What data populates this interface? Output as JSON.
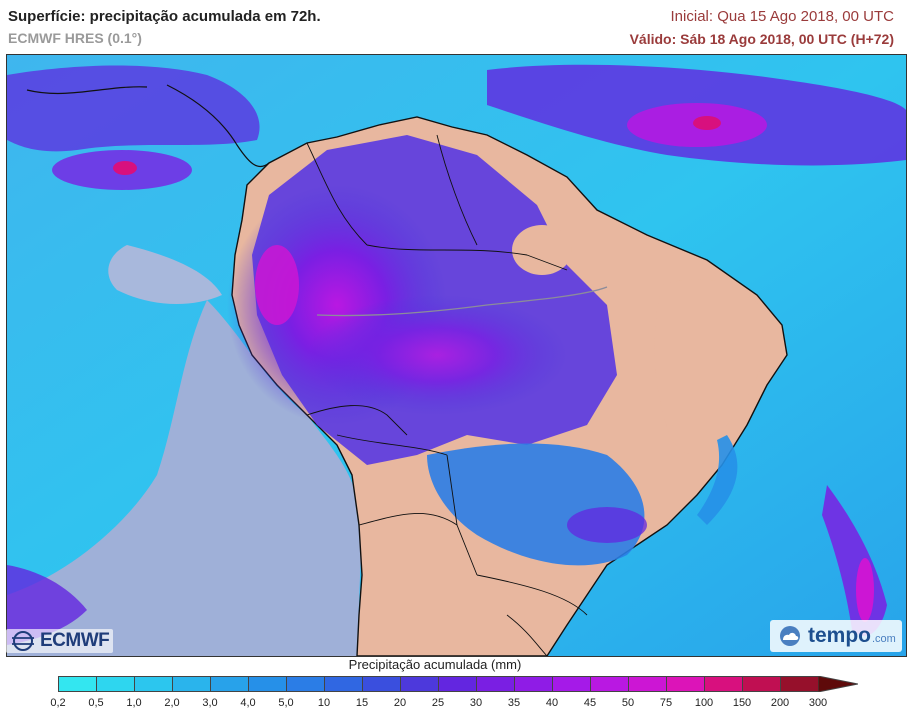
{
  "header": {
    "title": "Superfície: precipitação acumulada em 72h.",
    "model": "ECMWF HRES (0.1°)",
    "initial": "Inicial: Qua 15 Ago 2018, 00 UTC",
    "valid": "Válido: Sáb 18 Ago 2018, 00 UTC (H+72)"
  },
  "logos": {
    "ecmwf": "ECMWF",
    "tempo_main": "tempo",
    "tempo_domain": ".com"
  },
  "legend": {
    "title": "Precipitação acumulada (mm)",
    "labels": [
      "0,2",
      "0,5",
      "1,0",
      "2,0",
      "3,0",
      "4,0",
      "5,0",
      "10",
      "15",
      "20",
      "25",
      "30",
      "35",
      "40",
      "45",
      "50",
      "75",
      "100",
      "150",
      "200",
      "300"
    ],
    "colors": [
      "#33e6f0",
      "#2ed6ef",
      "#2cc6ee",
      "#2ab4ec",
      "#28a2ea",
      "#2690e8",
      "#2b7de6",
      "#3067e2",
      "#3a4fde",
      "#4d39dc",
      "#6326e0",
      "#7a1fe3",
      "#8f1ce6",
      "#a51ae8",
      "#b918e2",
      "#cc16d4",
      "#dc14b8",
      "#d8107e",
      "#c00f52",
      "#96102b"
    ],
    "arrow_color": "#5e0a0a"
  },
  "colors": {
    "ocean_dry": "#9fb0d8",
    "land_dry": "#e8b79f",
    "coast": "#111111"
  }
}
